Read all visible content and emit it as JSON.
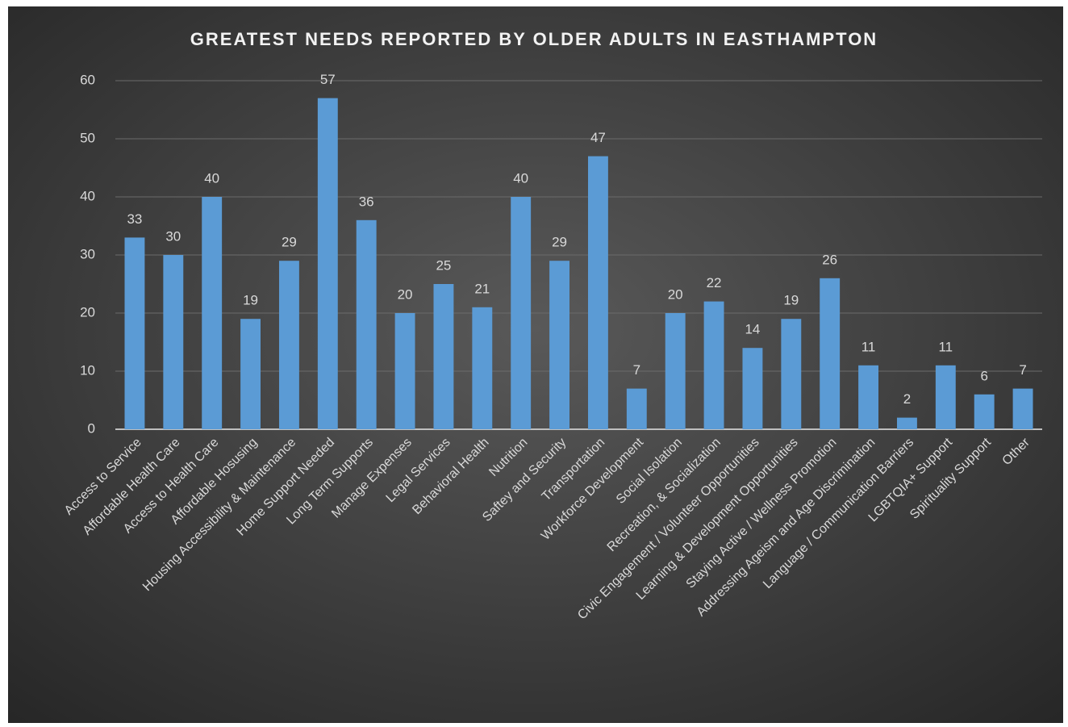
{
  "chart_data": {
    "type": "bar",
    "title": "GREATEST NEEDS REPORTED BY OLDER ADULTS IN EASTHAMPTON",
    "categories": [
      "Access to Service",
      "Affordable Health Care",
      "Access to Health Care",
      "Affordable Hosusing",
      "Housing Accessibility & Maintenance",
      "Home Support Needed",
      "Long Term Supports",
      "Manage Expenses",
      "Legal Services",
      "Behavioral Health",
      "Nutrition",
      "Saftey and Security",
      "Transportation",
      "Workforce Development",
      "Social Isolation",
      "Recreation, & Socialization",
      "Civic Engagement / Volunteer Opportunities",
      "Learning & Development Opportunities",
      "Staying Active / Wellness Promotion",
      "Addressing Ageism and Age Discrimination",
      "Language / Communication Barriers",
      "LGBTQIA+ Support",
      "Spirituality Support",
      "Other"
    ],
    "values": [
      33,
      30,
      40,
      19,
      29,
      57,
      36,
      20,
      25,
      21,
      40,
      29,
      47,
      7,
      20,
      22,
      14,
      19,
      26,
      11,
      2,
      11,
      6,
      7
    ],
    "color": "#5b9bd5",
    "ylim": [
      0,
      60
    ],
    "yticks": [
      0,
      10,
      20,
      30,
      40,
      50,
      60
    ],
    "grid": true
  }
}
